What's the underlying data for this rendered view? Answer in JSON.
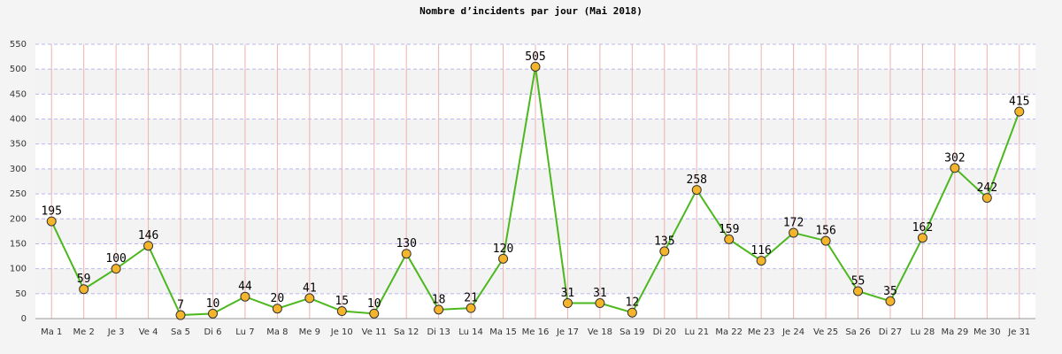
{
  "chart_data": {
    "type": "line",
    "title": "Nombre d’incidents par jour (Mai 2018)",
    "categories": [
      "Ma 1",
      "Me 2",
      "Je 3",
      "Ve 4",
      "Sa 5",
      "Di 6",
      "Lu 7",
      "Ma 8",
      "Me 9",
      "Je 10",
      "Ve 11",
      "Sa 12",
      "Di 13",
      "Lu 14",
      "Ma 15",
      "Me 16",
      "Je 17",
      "Ve 18",
      "Sa 19",
      "Di 20",
      "Lu 21",
      "Ma 22",
      "Me 23",
      "Je 24",
      "Ve 25",
      "Sa 26",
      "Di 27",
      "Lu 28",
      "Ma 29",
      "Me 30",
      "Je 31"
    ],
    "values": [
      195,
      59,
      100,
      146,
      7,
      10,
      44,
      20,
      41,
      15,
      10,
      130,
      18,
      21,
      120,
      505,
      31,
      31,
      12,
      135,
      258,
      159,
      116,
      172,
      156,
      55,
      35,
      162,
      302,
      242,
      415
    ],
    "color": "#4cb81e",
    "marker_color": "#f5b52a",
    "ylim": [
      0,
      550
    ],
    "yticks": [
      0,
      50,
      100,
      150,
      200,
      250,
      300,
      350,
      400,
      450,
      500,
      550
    ],
    "grid": true
  }
}
